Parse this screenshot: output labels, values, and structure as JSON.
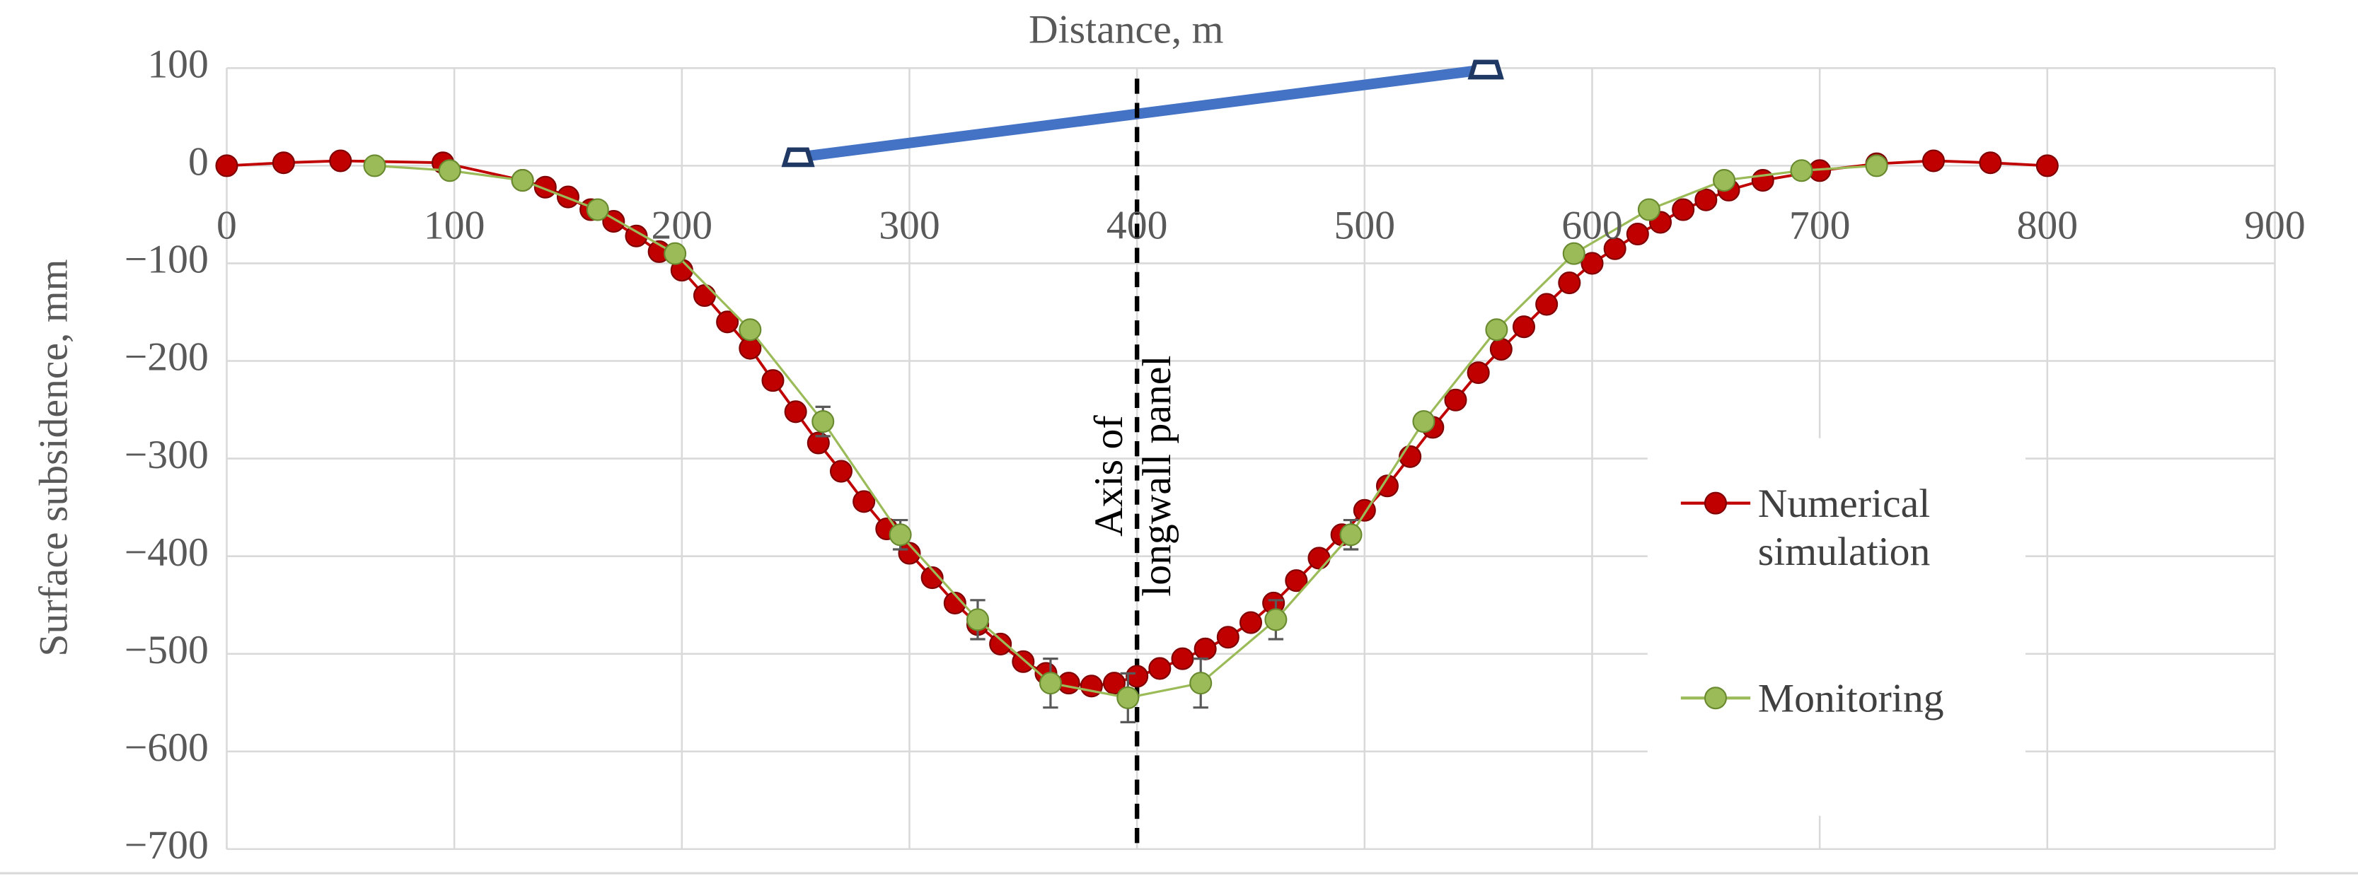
{
  "chart_data": {
    "type": "line",
    "title": "Distance, m",
    "y_label": "Surface subsidence, mm",
    "annotation": "Axis of  longwall panel",
    "vline_x": 400,
    "xlim": [
      0,
      900
    ],
    "xticks": [
      0,
      100,
      200,
      300,
      400,
      500,
      600,
      700,
      800,
      900
    ],
    "ylim": [
      -700,
      100
    ],
    "yticks": [
      {
        "value": -700,
        "label": "−700"
      },
      {
        "value": -600,
        "label": "−600"
      },
      {
        "value": -500,
        "label": "−500"
      },
      {
        "value": -400,
        "label": "−400"
      },
      {
        "value": -300,
        "label": "−300"
      },
      {
        "value": -200,
        "label": "−200"
      },
      {
        "value": -100,
        "label": "−100"
      },
      0,
      100
    ],
    "grid": true,
    "series": [
      {
        "name": "Numerical simulation",
        "color": "#c00000",
        "x": [
          0,
          25,
          50,
          95,
          130,
          140,
          150,
          160,
          170,
          180,
          190,
          200,
          210,
          220,
          230,
          240,
          250,
          260,
          270,
          280,
          290,
          300,
          310,
          320,
          330,
          340,
          350,
          360,
          370,
          380,
          390,
          400,
          410,
          420,
          430,
          440,
          450,
          460,
          470,
          480,
          490,
          500,
          510,
          520,
          530,
          540,
          550,
          560,
          570,
          580,
          590,
          600,
          610,
          620,
          630,
          640,
          650,
          660,
          675,
          700,
          725,
          750,
          775,
          800
        ],
        "values": [
          0,
          3,
          5,
          3,
          -15,
          -22,
          -32,
          -45,
          -57,
          -72,
          -88,
          -107,
          -133,
          -160,
          -187,
          -220,
          -252,
          -284,
          -313,
          -344,
          -372,
          -397,
          -422,
          -448,
          -470,
          -490,
          -508,
          -520,
          -530,
          -533,
          -530,
          -523,
          -515,
          -505,
          -495,
          -483,
          -468,
          -448,
          -425,
          -402,
          -378,
          -353,
          -328,
          -298,
          -268,
          -240,
          -212,
          -188,
          -165,
          -142,
          -120,
          -100,
          -85,
          -70,
          -58,
          -45,
          -35,
          -25,
          -15,
          -5,
          2,
          5,
          3,
          0
        ]
      },
      {
        "name": "Monitoring",
        "color": "#9bbb59",
        "x": [
          65,
          98,
          130,
          163,
          197,
          230,
          262,
          296,
          330,
          362,
          396,
          428,
          461,
          494,
          526,
          558,
          592,
          625,
          658,
          692,
          725
        ],
        "values": [
          0,
          -5,
          -15,
          -45,
          -90,
          -168,
          -262,
          -378,
          -465,
          -530,
          -545,
          -530,
          -465,
          -378,
          -262,
          -168,
          -90,
          -45,
          -15,
          -5,
          0
        ],
        "errors": [
          null,
          null,
          null,
          null,
          null,
          null,
          15,
          15,
          20,
          25,
          25,
          25,
          20,
          15,
          null,
          null,
          null,
          null,
          null,
          null,
          null
        ]
      }
    ]
  }
}
